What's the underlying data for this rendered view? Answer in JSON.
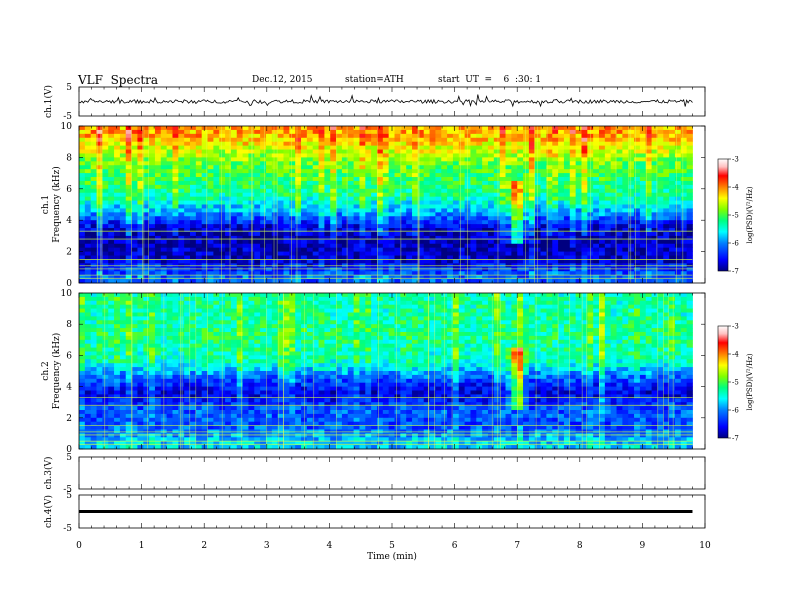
{
  "header": {
    "title": "VLF  Spectra",
    "date": "Dec.12, 2015",
    "station": "station=ATH",
    "start": "start  UT  =    6  :30: 1"
  },
  "colors": {
    "spectrum_scale": [
      "#000080",
      "#0000ff",
      "#0080ff",
      "#00ffff",
      "#00ff80",
      "#80ff00",
      "#ffff00",
      "#ff8000",
      "#ff0000",
      "#ffc0c0",
      "#ffffff"
    ],
    "trace": "#000000"
  },
  "chart_data": [
    {
      "type": "line",
      "panel": "ch1-waveform",
      "ylabel": "ch.1(V)",
      "ylim": [
        -5,
        5
      ],
      "yticks": [
        "5",
        "-5"
      ],
      "description_values": {
        "baseline": 0,
        "amplitude_approx": 1.2
      }
    },
    {
      "type": "heatmap",
      "panel": "ch1-spectrogram",
      "ylabel": "ch.1\nFrequency  (kHz)",
      "ylabel_ch": "ch.1",
      "ylabel_freq": "Frequency  (kHz)",
      "ylim": [
        0,
        10
      ],
      "yticks": [
        "0",
        "2",
        "4",
        "6",
        "8",
        "10"
      ],
      "colorbar": {
        "label": "log(PSD)(V²/Hz)",
        "ticks": [
          "-3",
          "-4",
          "-5",
          "-6",
          "-7"
        ],
        "range": [
          -7,
          -3
        ]
      },
      "approx_profile_log_psd": [
        {
          "f_khz": 0.5,
          "value": -6.2
        },
        {
          "f_khz": 1.5,
          "value": -6.8
        },
        {
          "f_khz": 2.5,
          "value": -6.9
        },
        {
          "f_khz": 3.5,
          "value": -6.8
        },
        {
          "f_khz": 4.5,
          "value": -6.0
        },
        {
          "f_khz": 5.5,
          "value": -5.4
        },
        {
          "f_khz": 6.5,
          "value": -5.2
        },
        {
          "f_khz": 7.5,
          "value": -5.0
        },
        {
          "f_khz": 8.5,
          "value": -4.6
        },
        {
          "f_khz": 9.5,
          "value": -4.2
        }
      ]
    },
    {
      "type": "heatmap",
      "panel": "ch2-spectrogram",
      "ylabel_ch": "ch.2",
      "ylabel_freq": "Frequency  (kHz)",
      "ylim": [
        0,
        10
      ],
      "yticks": [
        "0",
        "2",
        "4",
        "6",
        "8",
        "10"
      ],
      "colorbar": {
        "label": "log(PSD)(V²/Hz)",
        "ticks": [
          "-3",
          "-4",
          "-5",
          "-6",
          "-7"
        ],
        "range": [
          -7,
          -3
        ]
      },
      "approx_profile_log_psd": [
        {
          "f_khz": 0.5,
          "value": -5.8
        },
        {
          "f_khz": 1.5,
          "value": -6.3
        },
        {
          "f_khz": 2.5,
          "value": -6.2
        },
        {
          "f_khz": 3.5,
          "value": -6.8
        },
        {
          "f_khz": 4.5,
          "value": -6.3
        },
        {
          "f_khz": 5.5,
          "value": -5.5
        },
        {
          "f_khz": 6.5,
          "value": -5.4
        },
        {
          "f_khz": 7.5,
          "value": -5.3
        },
        {
          "f_khz": 8.5,
          "value": -5.4
        },
        {
          "f_khz": 9.5,
          "value": -5.4
        }
      ]
    },
    {
      "type": "line",
      "panel": "ch3-waveform",
      "ylabel": "ch.3(V)",
      "ylim": [
        -5,
        5
      ],
      "yticks": [
        "5",
        "-5"
      ]
    },
    {
      "type": "line",
      "panel": "ch4-waveform",
      "ylabel": "ch.4(V)",
      "ylim": [
        -5,
        5
      ],
      "yticks": [
        "5",
        "-5"
      ],
      "description_values": {
        "baseline": 0
      }
    }
  ],
  "xaxis": {
    "label": "Time  (min)",
    "range": [
      0,
      10
    ],
    "data_end": 9.8,
    "ticks": [
      "0",
      "1",
      "2",
      "3",
      "4",
      "5",
      "6",
      "7",
      "8",
      "9",
      "10"
    ]
  }
}
